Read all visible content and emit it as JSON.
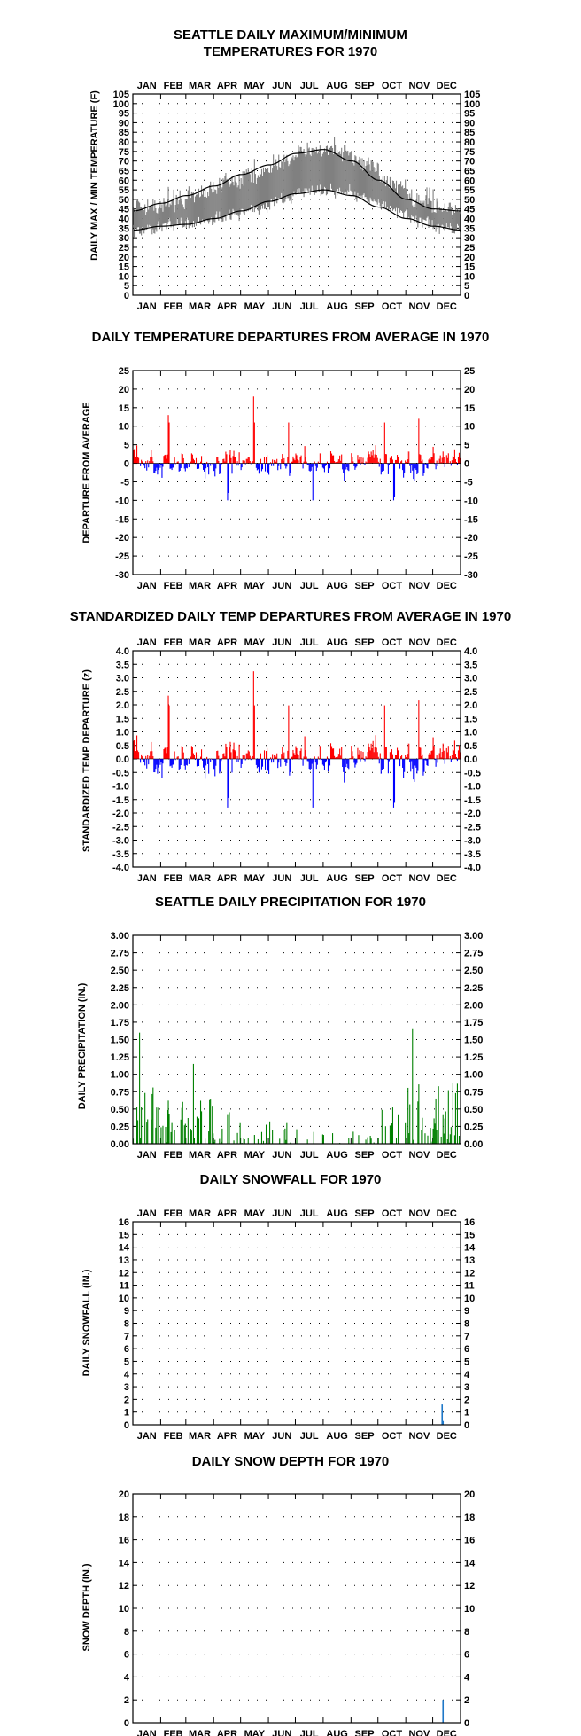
{
  "months": [
    "JAN",
    "FEB",
    "MAR",
    "APR",
    "MAY",
    "JUN",
    "JUL",
    "AUG",
    "SEP",
    "OCT",
    "NOV",
    "DEC"
  ],
  "colors": {
    "actual_temp": "#808080",
    "normal_temp": "#000000",
    "positive_departure": "#ff0000",
    "negative_departure": "#0000ff",
    "precipitation": "#008000",
    "snow": "#1e78c8"
  },
  "chart_data": [
    {
      "id": "temp",
      "type": "line",
      "title_lines": [
        "SEATTLE DAILY MAXIMUM/MINIMUM",
        "TEMPERATURES FOR 1970"
      ],
      "ylabel": "DAILY MAX / MIN TEMPERATURE  (F)",
      "ylim": [
        0,
        105
      ],
      "yticks": [
        0,
        5,
        10,
        15,
        20,
        25,
        30,
        35,
        40,
        45,
        50,
        55,
        60,
        65,
        70,
        75,
        80,
        85,
        90,
        95,
        100,
        105
      ],
      "month_labels": "top and bottom",
      "grid": "dotted",
      "series": [
        {
          "role": "daily maximum/minimum range (actual)",
          "color": "gray",
          "monthly_high_approx": [
            47,
            48,
            53,
            57,
            62,
            68,
            75,
            78,
            72,
            62,
            52,
            45
          ],
          "monthly_low_approx": [
            34,
            38,
            38,
            40,
            44,
            50,
            54,
            56,
            52,
            46,
            40,
            34
          ]
        },
        {
          "role": "normal maximum",
          "color": "black",
          "x_day": [
            1,
            32,
            60,
            91,
            121,
            152,
            182,
            213,
            244,
            274,
            305,
            335,
            365
          ],
          "values": [
            44,
            48,
            52,
            57,
            63,
            68,
            74,
            76,
            70,
            60,
            50,
            45,
            44
          ]
        },
        {
          "role": "normal minimum",
          "color": "black",
          "x_day": [
            1,
            32,
            60,
            91,
            121,
            152,
            182,
            213,
            244,
            274,
            305,
            335,
            365
          ],
          "values": [
            34,
            36,
            37,
            40,
            44,
            49,
            53,
            55,
            52,
            46,
            40,
            36,
            34
          ]
        }
      ]
    },
    {
      "id": "dep",
      "type": "bar",
      "title_lines": [
        "DAILY TEMPERATURE DEPARTURES FROM AVERAGE IN 1970"
      ],
      "ylabel": "DEPARTURE FROM AVERAGE",
      "ylim": [
        -30,
        25
      ],
      "yticks": [
        -30,
        -25,
        -20,
        -15,
        -10,
        -5,
        0,
        5,
        10,
        15,
        20,
        25
      ],
      "month_labels": "bottom",
      "grid": "dotted",
      "notable_values": {
        "max": 18,
        "min": -10
      }
    },
    {
      "id": "std",
      "type": "bar",
      "title_lines": [
        "STANDARDIZED DAILY TEMP DEPARTURES FROM AVERAGE IN 1970"
      ],
      "ylabel": "STANDARDIZED TEMP DEPARTURE  (z)",
      "ylim": [
        -4.0,
        4.0
      ],
      "yticks": [
        -4.0,
        -3.5,
        -3.0,
        -2.5,
        -2.0,
        -1.5,
        -1.0,
        -0.5,
        0.0,
        0.5,
        1.0,
        1.5,
        2.0,
        2.5,
        3.0,
        3.5,
        4.0
      ],
      "tick_format": "fixed1",
      "month_labels": "top and bottom",
      "grid": "dotted",
      "notable_values": {
        "max": 3.3,
        "min": -2.1
      }
    },
    {
      "id": "prcp",
      "type": "bar",
      "title_lines": [
        "SEATTLE DAILY PRECIPITATION FOR 1970"
      ],
      "ylabel": "DAILY PRECIPITATION (IN.)",
      "ylim": [
        0,
        3.0
      ],
      "yticks": [
        0.0,
        0.25,
        0.5,
        0.75,
        1.0,
        1.25,
        1.5,
        1.75,
        2.0,
        2.25,
        2.5,
        2.75,
        3.0
      ],
      "tick_format": "fixed2",
      "month_labels": "bottom",
      "grid": "dotted",
      "notable_values": [
        {
          "day": 8,
          "value": 1.6
        },
        {
          "day": 68,
          "value": 1.15
        },
        {
          "day": 312,
          "value": 1.65
        }
      ]
    },
    {
      "id": "snow",
      "type": "bar",
      "title_lines": [
        "DAILY SNOWFALL FOR 1970"
      ],
      "ylabel": "DAILY SNOWFALL  (IN.)",
      "ylim": [
        0,
        16
      ],
      "yticks": [
        0,
        1,
        2,
        3,
        4,
        5,
        6,
        7,
        8,
        9,
        10,
        11,
        12,
        13,
        14,
        15,
        16
      ],
      "month_labels": "top and bottom",
      "grid": "dotted",
      "bars": [
        {
          "day": 345,
          "value": 1.6
        },
        {
          "day": 346,
          "value": 0.3
        }
      ]
    },
    {
      "id": "depth",
      "type": "bar",
      "title_lines": [
        "DAILY SNOW DEPTH FOR 1970"
      ],
      "ylabel": "SNOW DEPTH (IN.)",
      "ylim": [
        0,
        20
      ],
      "yticks": [
        0,
        2,
        4,
        6,
        8,
        10,
        12,
        14,
        16,
        18,
        20
      ],
      "month_labels": "bottom",
      "grid": "dotted",
      "bars": [
        {
          "day": 346,
          "value": 2.0
        }
      ]
    }
  ]
}
